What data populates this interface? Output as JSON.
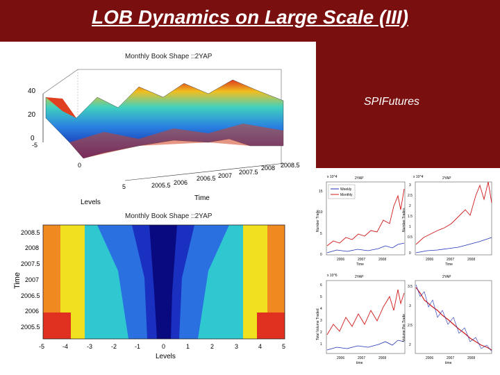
{
  "slide": {
    "title": "LOB Dynamics on Large Scale (III)",
    "label": "SPIFutures"
  },
  "surface_plot": {
    "title": "Monthly Book Shape ::2YAP",
    "z_ticks": [
      "40",
      "20",
      "0"
    ],
    "level_ticks": [
      "-5",
      "0",
      "5"
    ],
    "time_ticks": [
      "2005.5",
      "2006",
      "2006.5",
      "2007",
      "2007.5",
      "2008",
      "2008.5"
    ],
    "xlabel": "Levels",
    "ylabel": "Time"
  },
  "contour_plot": {
    "title": "Monthly Book Shape ::2YAP",
    "y_ticks": [
      "2008.5",
      "2008",
      "2007.5",
      "2007",
      "2006.5",
      "2006",
      "2005.5"
    ],
    "x_ticks": [
      "-5",
      "-4",
      "-3",
      "-2",
      "-1",
      "0",
      "1",
      "2",
      "3",
      "4",
      "5"
    ],
    "xlabel": "Levels",
    "ylabel": "Time"
  },
  "small_charts": [
    {
      "title": "2YAP",
      "ylabel": "Number Trade",
      "scale": "x 10^4",
      "y_ticks": [
        "15",
        "10",
        "5",
        "0"
      ],
      "x_ticks": [
        "2006",
        "2007",
        "2008"
      ],
      "xlabel": "Time",
      "legend": [
        "Weekly",
        "Monthly"
      ]
    },
    {
      "title": "2YAP",
      "ylabel": "Number Trades",
      "scale": "x 10^4",
      "y_ticks": [
        "3",
        "2.5",
        "2",
        "1.5",
        "1",
        "0.5",
        "0"
      ],
      "x_ticks": [
        "2006",
        "2007",
        "2008"
      ],
      "xlabel": "Time"
    },
    {
      "title": "2YAP",
      "ylabel": "Total Volume Traded",
      "scale": "x 10^6",
      "y_ticks": [
        "6",
        "5",
        "4",
        "3",
        "2",
        "1"
      ],
      "x_ticks": [
        "2006",
        "2007",
        "2008"
      ],
      "xlabel": "time"
    },
    {
      "title": "2YAP",
      "ylabel": "Volume Per Trade",
      "scale": "",
      "y_ticks": [
        "3.5",
        "3",
        "2.5",
        "2"
      ],
      "x_ticks": [
        "2006",
        "2007",
        "2008"
      ],
      "xlabel": "time"
    }
  ],
  "colors": {
    "background": "#7a0f0f",
    "weekly": "#1f2fb5",
    "monthly": "#d01818"
  }
}
